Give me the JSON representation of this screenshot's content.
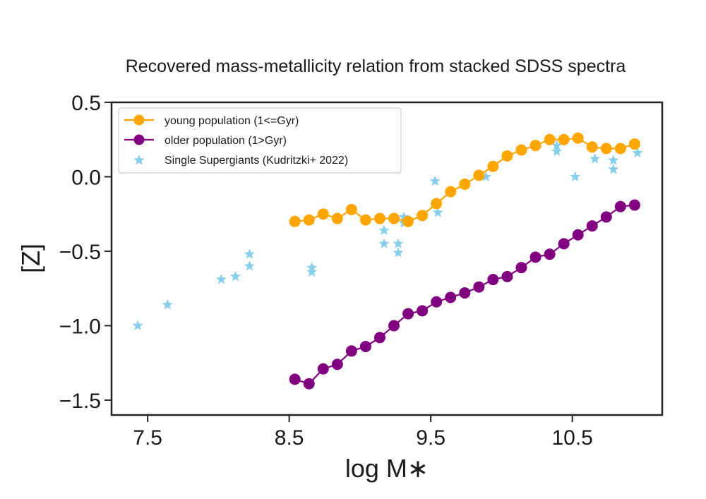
{
  "chart_data": {
    "type": "line",
    "title": "Recovered mass-metallicity relation from stacked SDSS spectra",
    "xlabel": "log M∗",
    "ylabel": "[Z]",
    "xlim": [
      7.245,
      11.135
    ],
    "ylim": [
      -1.6,
      0.5
    ],
    "xticks": [
      7.5,
      8.5,
      9.5,
      10.5
    ],
    "xtick_labels": [
      "7.5",
      "8.5",
      "9.5",
      "10.5"
    ],
    "yticks": [
      0.5,
      0.0,
      -0.5,
      -1.0,
      -1.5
    ],
    "ytick_labels": [
      "0.5",
      "0.0",
      "−0.5",
      "−1.0",
      "−1.5"
    ],
    "grid": false,
    "legend_position": "top-left",
    "series": [
      {
        "name": "young population (1<=Gyr)",
        "kind": "line-marker",
        "color": "#FFA500",
        "x": [
          8.54,
          8.64,
          8.74,
          8.84,
          8.94,
          9.04,
          9.14,
          9.24,
          9.34,
          9.44,
          9.54,
          9.64,
          9.74,
          9.84,
          9.94,
          10.04,
          10.14,
          10.24,
          10.34,
          10.44,
          10.54,
          10.64,
          10.74,
          10.84,
          10.94
        ],
        "y": [
          -0.3,
          -0.29,
          -0.25,
          -0.28,
          -0.22,
          -0.29,
          -0.28,
          -0.28,
          -0.3,
          -0.26,
          -0.18,
          -0.1,
          -0.05,
          0.01,
          0.07,
          0.14,
          0.18,
          0.21,
          0.25,
          0.25,
          0.26,
          0.2,
          0.19,
          0.19,
          0.22
        ]
      },
      {
        "name": "older population (1>Gyr)",
        "kind": "line-marker",
        "color": "#800080",
        "x": [
          8.54,
          8.64,
          8.74,
          8.84,
          8.94,
          9.04,
          9.14,
          9.24,
          9.34,
          9.44,
          9.54,
          9.64,
          9.74,
          9.84,
          9.94,
          10.04,
          10.14,
          10.24,
          10.34,
          10.44,
          10.54,
          10.64,
          10.74,
          10.84,
          10.94
        ],
        "y": [
          -1.36,
          -1.39,
          -1.29,
          -1.26,
          -1.17,
          -1.14,
          -1.08,
          -1.0,
          -0.92,
          -0.9,
          -0.84,
          -0.81,
          -0.78,
          -0.74,
          -0.69,
          -0.67,
          -0.61,
          -0.54,
          -0.52,
          -0.45,
          -0.39,
          -0.33,
          -0.27,
          -0.2,
          -0.19
        ]
      },
      {
        "name": "Single Supergiants (Kudritzki+ 2022)",
        "kind": "star-scatter",
        "color": "#87CEEB",
        "x": [
          7.43,
          7.64,
          8.02,
          8.12,
          8.22,
          8.22,
          8.66,
          8.66,
          9.17,
          9.17,
          9.27,
          9.27,
          9.31,
          9.31,
          9.53,
          9.55,
          9.89,
          10.39,
          10.39,
          10.52,
          10.66,
          10.79,
          10.79,
          10.96
        ],
        "y": [
          -1.0,
          -0.86,
          -0.69,
          -0.67,
          -0.52,
          -0.6,
          -0.61,
          -0.64,
          -0.36,
          -0.45,
          -0.45,
          -0.51,
          -0.27,
          -0.31,
          -0.03,
          -0.24,
          0.0,
          0.21,
          0.17,
          0.0,
          0.12,
          0.11,
          0.05,
          0.16
        ]
      }
    ]
  }
}
